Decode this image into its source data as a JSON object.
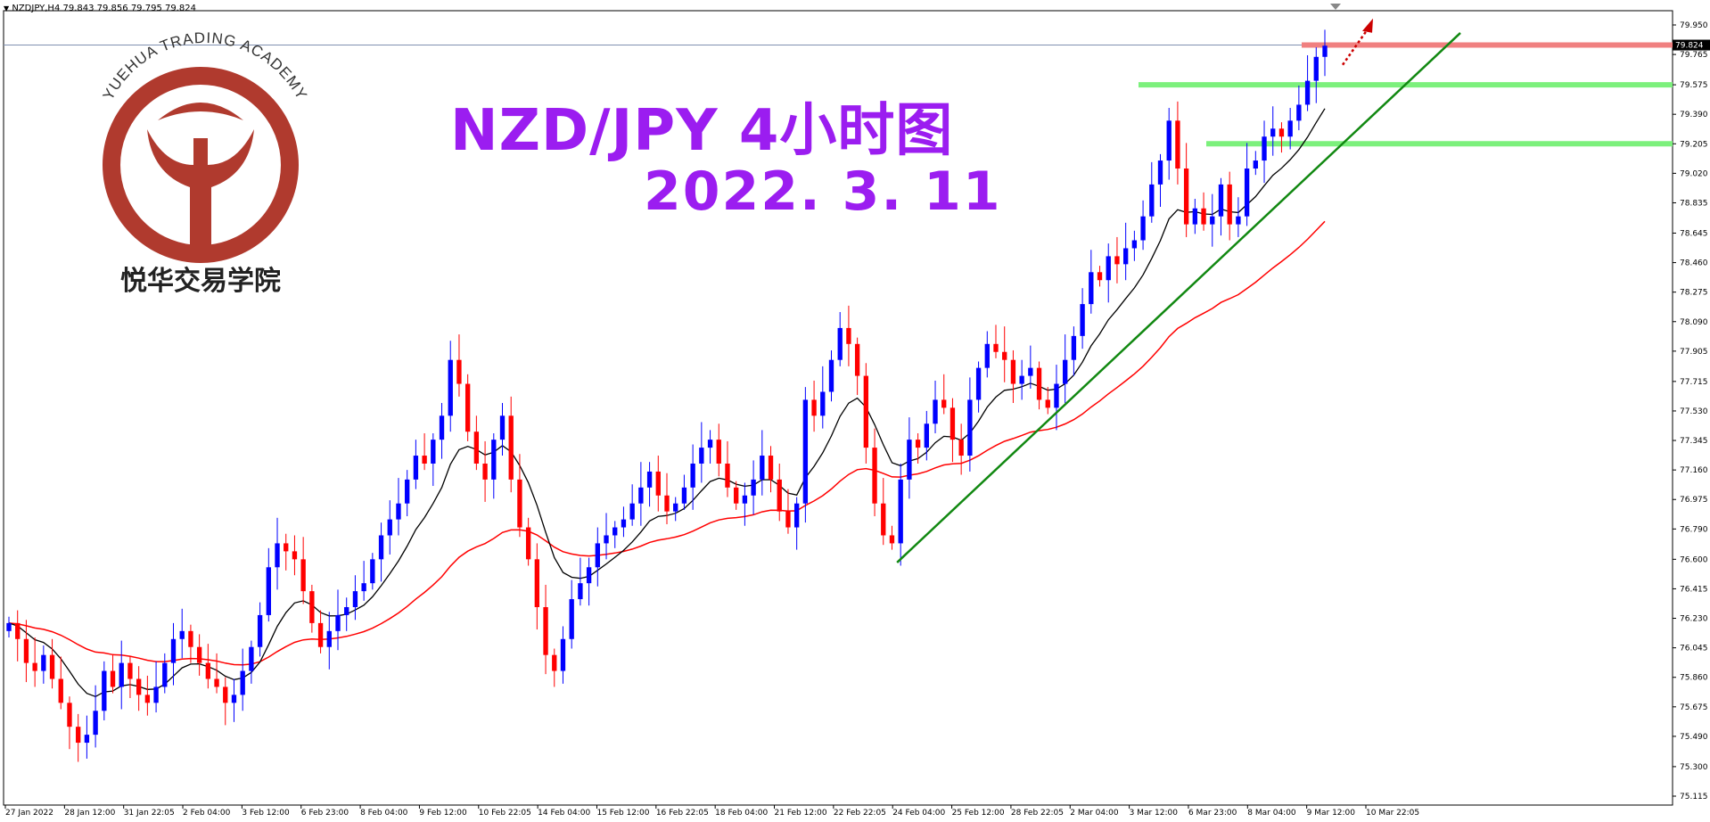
{
  "symbol_bar": {
    "dropdown_icon": "chevron-down-icon",
    "text": "NZDJPY,H4  79.843 79.856 79.795 79.824"
  },
  "logo": {
    "arc_text": "YUEHUA TRADING ACADEMY",
    "cn_text": "悦华交易学院",
    "color": "#b03a2e"
  },
  "titles": {
    "line1": "NZD/JPY 4小时图",
    "line2": "2022. 3. 11",
    "color": "#9b1df0"
  },
  "chart_data": {
    "type": "candlestick",
    "symbol": "NZDJPY",
    "timeframe": "H4",
    "ohlc_header": {
      "open": 79.843,
      "high": 79.856,
      "low": 79.795,
      "close": 79.824
    },
    "current_price": 79.824,
    "ylim": [
      75.115,
      79.95
    ],
    "y_ticks": [
      "79.950",
      "79.765",
      "79.575",
      "79.390",
      "79.205",
      "79.020",
      "78.835",
      "78.645",
      "78.460",
      "78.275",
      "78.090",
      "77.905",
      "77.715",
      "77.530",
      "77.345",
      "77.160",
      "76.975",
      "76.790",
      "76.600",
      "76.415",
      "76.230",
      "76.045",
      "75.860",
      "75.675",
      "75.490",
      "75.300",
      "75.115"
    ],
    "x_ticks": [
      "27 Jan 2022",
      "28 Jan 12:00",
      "31 Jan 22:05",
      "2 Feb 04:00",
      "3 Feb 12:00",
      "6 Feb 23:00",
      "8 Feb 04:00",
      "9 Feb 12:00",
      "10 Feb 22:05",
      "14 Feb 04:00",
      "15 Feb 12:00",
      "16 Feb 22:05",
      "18 Feb 04:00",
      "21 Feb 12:00",
      "22 Feb 22:05",
      "24 Feb 04:00",
      "25 Feb 12:00",
      "28 Feb 22:05",
      "2 Mar 04:00",
      "3 Mar 12:00",
      "6 Mar 23:00",
      "8 Mar 04:00",
      "9 Mar 12:00",
      "10 Mar 22:05"
    ],
    "closes": [
      76.2,
      76.1,
      75.95,
      75.9,
      76.0,
      75.85,
      75.7,
      75.55,
      75.45,
      75.5,
      75.65,
      75.9,
      75.8,
      75.95,
      75.85,
      75.75,
      75.7,
      75.8,
      75.95,
      76.1,
      76.15,
      76.05,
      75.95,
      75.85,
      75.8,
      75.7,
      75.75,
      75.9,
      76.05,
      76.25,
      76.55,
      76.7,
      76.65,
      76.6,
      76.4,
      76.2,
      76.05,
      76.15,
      76.25,
      76.3,
      76.4,
      76.45,
      76.6,
      76.75,
      76.85,
      76.95,
      77.1,
      77.25,
      77.2,
      77.35,
      77.5,
      77.85,
      77.7,
      77.4,
      77.2,
      77.1,
      77.35,
      77.5,
      77.1,
      76.8,
      76.6,
      76.3,
      76.0,
      75.9,
      76.1,
      76.35,
      76.45,
      76.55,
      76.7,
      76.75,
      76.8,
      76.85,
      76.95,
      77.05,
      77.15,
      77.0,
      76.9,
      76.95,
      77.05,
      77.2,
      77.3,
      77.35,
      77.2,
      77.05,
      76.95,
      77.0,
      77.1,
      77.25,
      77.1,
      76.9,
      76.8,
      76.95,
      77.6,
      77.5,
      77.65,
      77.85,
      78.05,
      77.95,
      77.75,
      77.3,
      76.95,
      76.75,
      76.7,
      77.1,
      77.35,
      77.3,
      77.45,
      77.6,
      77.55,
      77.35,
      77.25,
      77.6,
      77.8,
      77.95,
      77.9,
      77.85,
      77.7,
      77.75,
      77.8,
      77.6,
      77.55,
      77.7,
      77.85,
      78.0,
      78.2,
      78.4,
      78.35,
      78.5,
      78.45,
      78.55,
      78.6,
      78.75,
      78.95,
      79.1,
      79.35,
      79.05,
      78.7,
      78.8,
      78.7,
      78.75,
      78.95,
      78.7,
      78.75,
      79.05,
      79.1,
      79.25,
      79.3,
      79.25,
      79.35,
      79.45,
      79.6,
      79.75,
      79.82
    ],
    "series": [
      {
        "name": "",
        "type": "line",
        "color": "#000000"
      },
      {
        "name": "",
        "type": "line",
        "color": "#ff0000"
      }
    ],
    "horizontal_levels": [
      {
        "price": 79.824,
        "color": "#f08080"
      },
      {
        "price": 79.575,
        "color": "#7cf07c"
      },
      {
        "price": 79.205,
        "color": "#7cf07c"
      }
    ],
    "colors": {
      "bull": "#0000ff",
      "bear": "#ff0000",
      "trendline": "#118811",
      "arrow": "#cc0000"
    },
    "grid": false
  }
}
